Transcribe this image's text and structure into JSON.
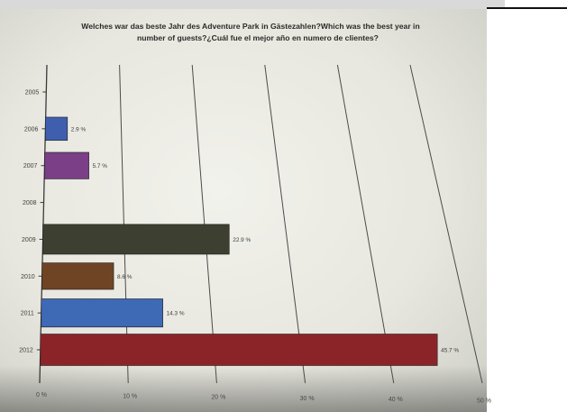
{
  "chart_data": {
    "type": "bar",
    "orientation": "horizontal",
    "title": "Welches war das beste Jahr des Adventure Park in Gästezahlen?Which was the best year in number of guests?¿Cuál fue el mejor año en numero de clientes?",
    "title_lines": [
      "Welches war das beste Jahr des Adventure Park in Gästezahlen?Which was the best year in",
      "number of guests?¿Cuál fue el mejor año en numero de clientes?"
    ],
    "categories": [
      "2005",
      "2006",
      "2007",
      "2008",
      "2009",
      "2010",
      "2011",
      "2012"
    ],
    "values": [
      0,
      2.9,
      5.7,
      0,
      22.9,
      8.6,
      14.3,
      45.7
    ],
    "value_labels": [
      "",
      "2.9 %",
      "5.7 %",
      "",
      "22.9 %",
      "8.6 %",
      "14.3 %",
      "45.7 %"
    ],
    "colors": [
      "#2a2a2a",
      "#3f5fae",
      "#7a3f86",
      "#2a2a2a",
      "#3d3f31",
      "#6f4424",
      "#3d69b5",
      "#8b2429"
    ],
    "xlim": [
      0,
      50
    ],
    "x_ticks": [
      0,
      10,
      20,
      30,
      40,
      50
    ],
    "x_tick_labels": [
      "0 %",
      "10 %",
      "20 %",
      "30 %",
      "40 %",
      "50 %"
    ],
    "grid": true,
    "legend": "none"
  }
}
